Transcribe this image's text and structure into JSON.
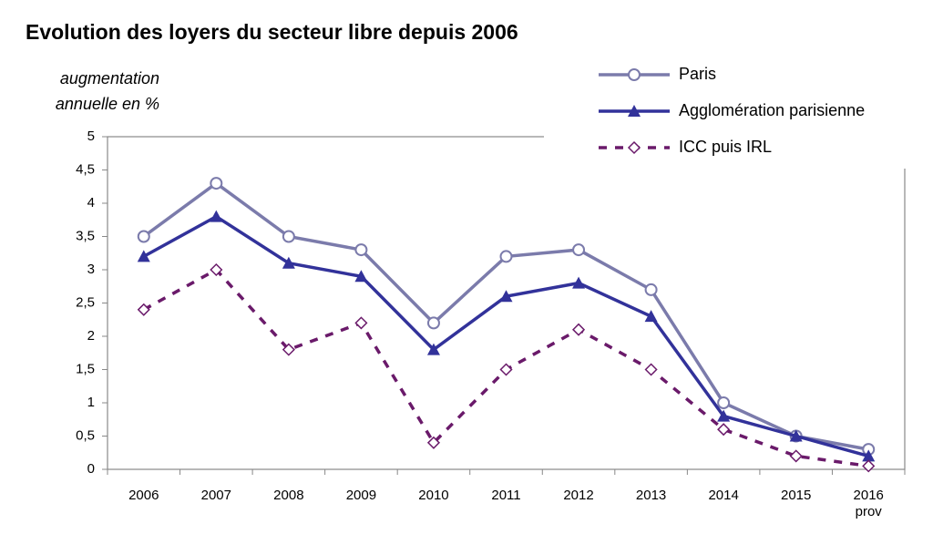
{
  "chart_data": {
    "type": "line",
    "title": "Evolution des loyers du secteur libre depuis 2006",
    "y_label": "augmentation\nannuelle en %",
    "categories": [
      "2006",
      "2007",
      "2008",
      "2009",
      "2010",
      "2011",
      "2012",
      "2013",
      "2014",
      "2015",
      "2016\nprov"
    ],
    "series": [
      {
        "name": "Paris",
        "color": "#7b7bab",
        "marker": "circle",
        "dashed": false,
        "values": [
          3.5,
          4.3,
          3.5,
          3.3,
          2.2,
          3.2,
          3.3,
          2.7,
          1.0,
          0.5,
          0.3
        ]
      },
      {
        "name": "Agglomération parisienne",
        "color": "#32329a",
        "marker": "triangle",
        "dashed": false,
        "values": [
          3.2,
          3.8,
          3.1,
          2.9,
          1.8,
          2.6,
          2.8,
          2.3,
          0.8,
          0.5,
          0.2
        ]
      },
      {
        "name": "ICC puis IRL",
        "color": "#6a1a6a",
        "marker": "diamond",
        "dashed": true,
        "values": [
          2.4,
          3.0,
          1.8,
          2.2,
          0.4,
          1.5,
          2.1,
          1.5,
          0.6,
          0.2,
          0.05
        ]
      }
    ],
    "ylim": [
      0,
      5
    ],
    "yticks": [
      0,
      {
        "value": 0.5,
        "label": "0,5"
      },
      1,
      {
        "value": 1.5,
        "label": "1,5"
      },
      2,
      {
        "value": 2.5,
        "label": "2,5"
      },
      3,
      {
        "value": 3.5,
        "label": "3,5"
      },
      4,
      {
        "value": 4.5,
        "label": "4,5"
      },
      5
    ],
    "grid": false,
    "legend": "top-right"
  }
}
